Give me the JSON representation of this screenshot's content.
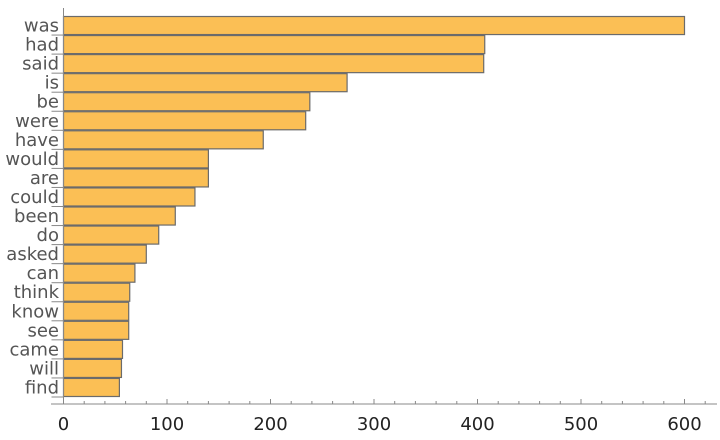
{
  "chart_data": {
    "type": "bar",
    "orientation": "horizontal",
    "title": "",
    "xlabel": "",
    "ylabel": "",
    "categories": [
      "was",
      "had",
      "said",
      "is",
      "be",
      "were",
      "have",
      "would",
      "are",
      "could",
      "been",
      "do",
      "asked",
      "can",
      "think",
      "know",
      "see",
      "came",
      "will",
      "find"
    ],
    "values": [
      600,
      407,
      406,
      274,
      238,
      234,
      193,
      140,
      140,
      127,
      108,
      92,
      80,
      69,
      64,
      63,
      63,
      57,
      56,
      54
    ],
    "xlim": [
      -12,
      632
    ],
    "xticks": [
      0,
      100,
      200,
      300,
      400,
      500,
      600
    ],
    "grid": false,
    "colors": {
      "bar_fill": "#FBBF55",
      "bar_stroke": "#6b6b6b",
      "axis": "#888888",
      "text": "#555555"
    }
  }
}
